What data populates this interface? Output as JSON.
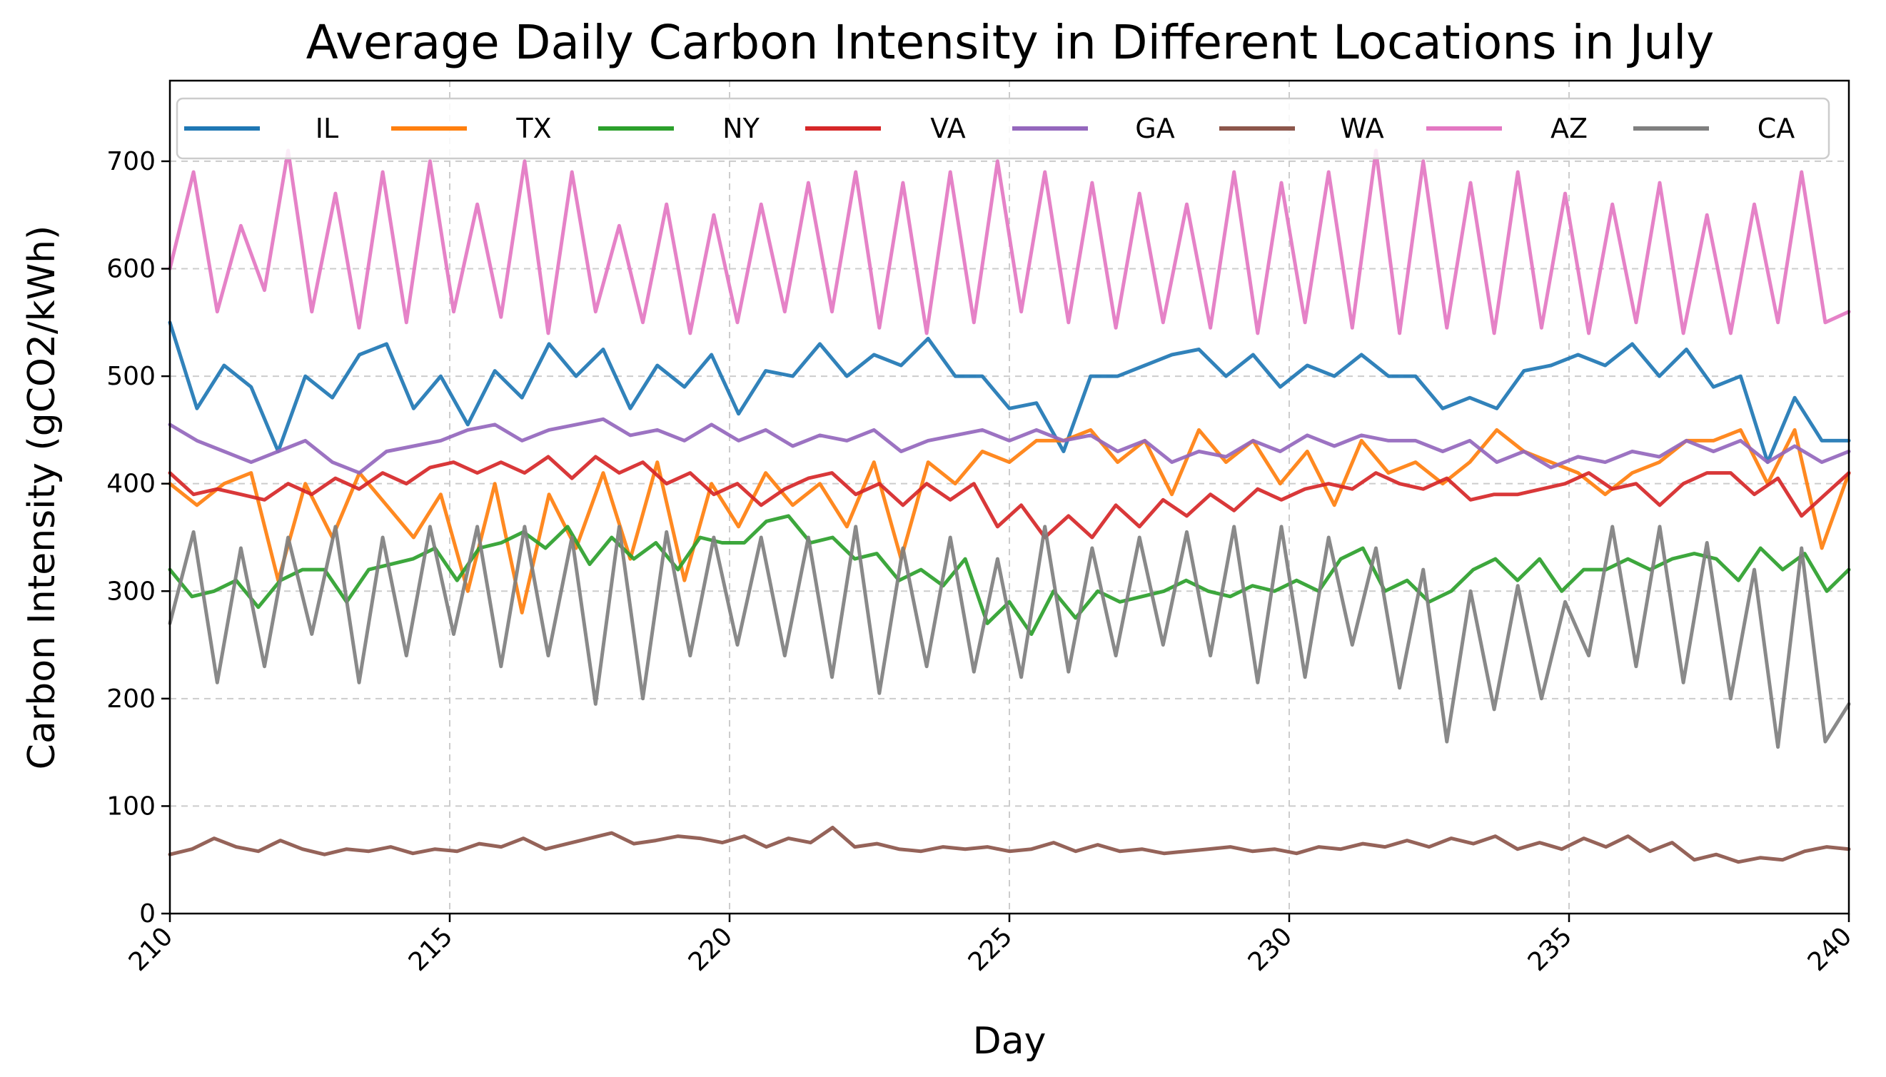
{
  "chart_data": {
    "type": "line",
    "title": "Average Daily Carbon Intensity in Different Locations in July",
    "xlabel": "Day",
    "ylabel": "Carbon Intensity (gCO2/kWh)",
    "xlim": [
      210,
      240
    ],
    "ylim": [
      0,
      775
    ],
    "xticks": [
      210,
      215,
      220,
      225,
      230,
      235,
      240
    ],
    "yticks": [
      0,
      100,
      200,
      300,
      400,
      500,
      600,
      700
    ],
    "grid": true,
    "legend": {
      "placement": "top",
      "columns": 8
    },
    "x_step": 0.5,
    "series": [
      {
        "name": "IL",
        "color": "#1f77b4",
        "values": [
          550,
          470,
          510,
          490,
          430,
          500,
          480,
          520,
          530,
          470,
          500,
          455,
          505,
          480,
          530,
          500,
          525,
          470,
          510,
          490,
          520,
          465,
          505,
          500,
          530,
          500,
          520,
          510,
          535,
          500,
          500,
          470,
          475,
          430,
          500,
          500,
          510,
          520,
          525,
          500,
          520,
          490,
          510,
          500,
          520,
          500,
          500,
          470,
          480,
          470,
          505,
          510,
          520,
          510,
          530,
          500,
          525,
          490,
          500,
          420,
          480,
          440,
          440
        ]
      },
      {
        "name": "TX",
        "color": "#ff7f0e",
        "values": [
          400,
          380,
          400,
          410,
          310,
          400,
          350,
          410,
          380,
          350,
          390,
          300,
          400,
          280,
          390,
          340,
          410,
          330,
          420,
          310,
          400,
          360,
          410,
          380,
          400,
          360,
          420,
          330,
          420,
          400,
          430,
          420,
          440,
          440,
          450,
          420,
          440,
          390,
          450,
          420,
          440,
          400,
          430,
          380,
          440,
          410,
          420,
          400,
          420,
          450,
          430,
          420,
          410,
          390,
          410,
          420,
          440,
          440,
          450,
          400,
          450,
          340,
          410
        ]
      },
      {
        "name": "NY",
        "color": "#2ca02c",
        "values": [
          320,
          295,
          300,
          310,
          285,
          310,
          320,
          320,
          290,
          320,
          325,
          330,
          340,
          310,
          340,
          345,
          355,
          340,
          360,
          325,
          350,
          330,
          345,
          320,
          350,
          345,
          345,
          365,
          370,
          345,
          350,
          330,
          335,
          310,
          320,
          305,
          330,
          270,
          290,
          260,
          300,
          275,
          300,
          290,
          295,
          300,
          310,
          300,
          295,
          305,
          300,
          310,
          300,
          330,
          340,
          300,
          310,
          290,
          300,
          320,
          330,
          310,
          330,
          300,
          320,
          320,
          330,
          320,
          330,
          335,
          330,
          310,
          340,
          320,
          335,
          300,
          320
        ]
      },
      {
        "name": "VA",
        "color": "#d62728",
        "values": [
          410,
          390,
          395,
          390,
          385,
          400,
          390,
          405,
          395,
          410,
          400,
          415,
          420,
          410,
          420,
          410,
          425,
          405,
          425,
          410,
          420,
          400,
          410,
          390,
          400,
          380,
          395,
          405,
          410,
          390,
          400,
          380,
          400,
          385,
          400,
          360,
          380,
          350,
          370,
          350,
          380,
          360,
          385,
          370,
          390,
          375,
          395,
          385,
          395,
          400,
          395,
          410,
          400,
          395,
          405,
          385,
          390,
          390,
          395,
          400,
          410,
          395,
          400,
          380,
          400,
          410,
          410,
          390,
          405,
          370,
          390,
          410
        ]
      },
      {
        "name": "GA",
        "color": "#9467bd",
        "values": [
          455,
          440,
          430,
          420,
          430,
          440,
          420,
          410,
          430,
          435,
          440,
          450,
          455,
          440,
          450,
          455,
          460,
          445,
          450,
          440,
          455,
          440,
          450,
          435,
          445,
          440,
          450,
          430,
          440,
          445,
          450,
          440,
          450,
          440,
          445,
          430,
          440,
          420,
          430,
          425,
          440,
          430,
          445,
          435,
          445,
          440,
          440,
          430,
          440,
          420,
          430,
          415,
          425,
          420,
          430,
          425,
          440,
          430,
          440,
          420,
          435,
          420,
          430
        ]
      },
      {
        "name": "WA",
        "color": "#8c564b",
        "values": [
          55,
          60,
          70,
          62,
          58,
          68,
          60,
          55,
          60,
          58,
          62,
          56,
          60,
          58,
          65,
          62,
          70,
          60,
          65,
          70,
          75,
          65,
          68,
          72,
          70,
          66,
          72,
          62,
          70,
          66,
          80,
          62,
          65,
          60,
          58,
          62,
          60,
          62,
          58,
          60,
          66,
          58,
          64,
          58,
          60,
          56,
          58,
          60,
          62,
          58,
          60,
          56,
          62,
          60,
          65,
          62,
          68,
          62,
          70,
          65,
          72,
          60,
          66,
          60,
          70,
          62,
          72,
          58,
          66,
          50,
          55,
          48,
          52,
          50,
          58,
          62,
          60
        ]
      },
      {
        "name": "AZ",
        "color": "#e377c2",
        "values": [
          600,
          690,
          560,
          640,
          580,
          710,
          560,
          670,
          545,
          690,
          550,
          700,
          560,
          660,
          555,
          700,
          540,
          690,
          560,
          640,
          550,
          660,
          540,
          650,
          550,
          660,
          560,
          680,
          560,
          690,
          545,
          680,
          540,
          690,
          550,
          700,
          560,
          690,
          550,
          680,
          545,
          670,
          550,
          660,
          545,
          690,
          540,
          680,
          550,
          690,
          545,
          710,
          540,
          700,
          545,
          680,
          540,
          690,
          545,
          670,
          540,
          660,
          550,
          680,
          540,
          650,
          540,
          660,
          550,
          690,
          550,
          560
        ]
      },
      {
        "name": "CA",
        "color": "#7f7f7f",
        "values": [
          270,
          355,
          215,
          340,
          230,
          350,
          260,
          360,
          215,
          350,
          240,
          360,
          260,
          360,
          230,
          360,
          240,
          350,
          195,
          360,
          200,
          355,
          240,
          350,
          250,
          350,
          240,
          350,
          220,
          360,
          205,
          340,
          230,
          350,
          225,
          330,
          220,
          360,
          225,
          340,
          240,
          350,
          250,
          355,
          240,
          360,
          215,
          360,
          220,
          350,
          250,
          340,
          210,
          320,
          160,
          300,
          190,
          305,
          200,
          290,
          240,
          360,
          230,
          360,
          215,
          345,
          200,
          320,
          155,
          340,
          160,
          195
        ]
      }
    ]
  }
}
